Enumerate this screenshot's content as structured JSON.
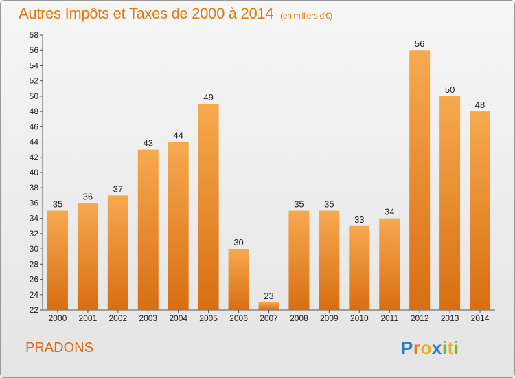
{
  "title": "Autres Impôts et Taxes de 2000 à 2014",
  "subtitle": "(en milliers d'€)",
  "commune": "PRADONS",
  "logo": {
    "text": "Proxiti",
    "letters": [
      "P",
      "r",
      "o",
      "x",
      "i",
      "t",
      "i"
    ],
    "colors": [
      "#2b7cc6",
      "#e87b16",
      "#e8b21a",
      "#2b7cc6",
      "#7db52a",
      "#e8b21a",
      "#7db52a"
    ]
  },
  "colors": {
    "bar_top": "#f7a94f",
    "bar_bottom": "#d86e12",
    "title": "#e07a10"
  },
  "chart_data": {
    "type": "bar",
    "categories": [
      "2000",
      "2001",
      "2002",
      "2003",
      "2004",
      "2005",
      "2006",
      "2007",
      "2008",
      "2009",
      "2010",
      "2011",
      "2012",
      "2013",
      "2014"
    ],
    "values": [
      35,
      36,
      37,
      43,
      44,
      49,
      30,
      23,
      35,
      35,
      33,
      34,
      56,
      50,
      48
    ],
    "ylim": [
      22,
      58
    ],
    "yticks": [
      22,
      24,
      26,
      28,
      30,
      32,
      34,
      36,
      38,
      40,
      42,
      44,
      46,
      48,
      50,
      52,
      54,
      56,
      58
    ],
    "grid": false,
    "data_labels": true
  }
}
